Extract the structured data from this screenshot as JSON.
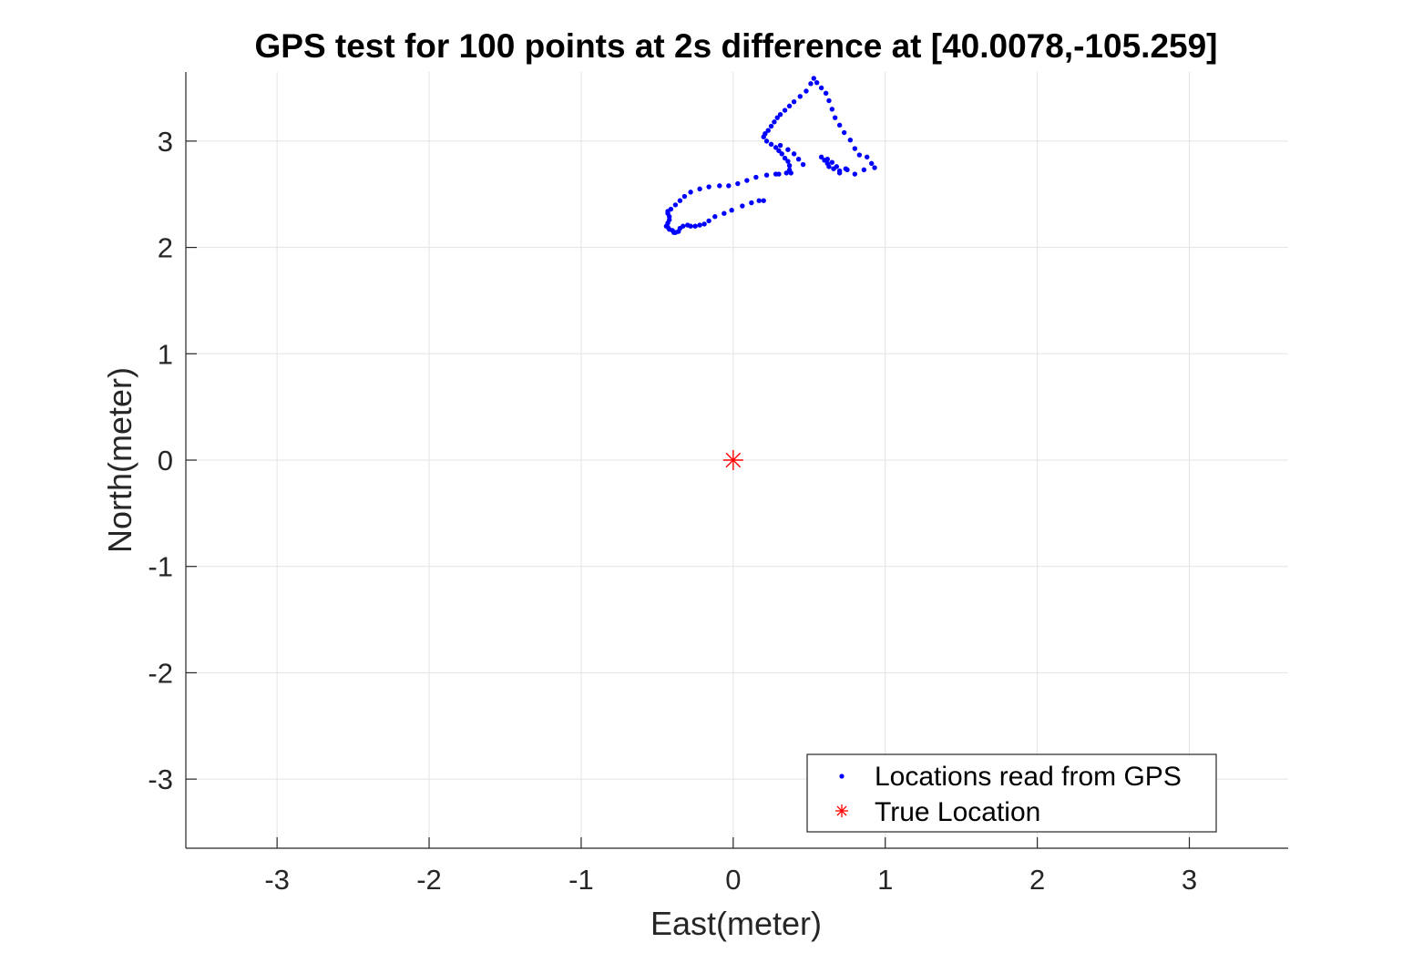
{
  "chart_data": {
    "type": "scatter",
    "title": "GPS test for 100 points at 2s difference at [40.0078,-105.259]",
    "xlabel": "East(meter)",
    "ylabel": "North(meter)",
    "xlim": [
      -3.6,
      3.65
    ],
    "ylim": [
      -3.65,
      3.65
    ],
    "xticks": [
      -3,
      -2,
      -1,
      0,
      1,
      2,
      3
    ],
    "yticks": [
      -3,
      -2,
      -1,
      0,
      1,
      2,
      3
    ],
    "xtick_labels": [
      "-3",
      "-2",
      "-1",
      "0",
      "1",
      "2",
      "3"
    ],
    "ytick_labels": [
      "-3",
      "-2",
      "-1",
      "0",
      "1",
      "2",
      "3"
    ],
    "grid": true,
    "legend_position": "bottom-right",
    "series": [
      {
        "name": "Locations read from GPS",
        "marker": "dot",
        "color": "#0000ff",
        "points": [
          [
            0.2,
            2.44
          ],
          [
            0.17,
            2.44
          ],
          [
            0.12,
            2.42
          ],
          [
            0.06,
            2.39
          ],
          [
            -0.01,
            2.35
          ],
          [
            -0.06,
            2.32
          ],
          [
            -0.12,
            2.29
          ],
          [
            -0.16,
            2.25
          ],
          [
            -0.19,
            2.22
          ],
          [
            -0.22,
            2.21
          ],
          [
            -0.25,
            2.2
          ],
          [
            -0.28,
            2.2
          ],
          [
            -0.3,
            2.21
          ],
          [
            -0.33,
            2.2
          ],
          [
            -0.35,
            2.18
          ],
          [
            -0.36,
            2.15
          ],
          [
            -0.38,
            2.14
          ],
          [
            -0.39,
            2.14
          ],
          [
            -0.4,
            2.16
          ],
          [
            -0.42,
            2.17
          ],
          [
            -0.43,
            2.19
          ],
          [
            -0.44,
            2.2
          ],
          [
            -0.43,
            2.23
          ],
          [
            -0.42,
            2.26
          ],
          [
            -0.42,
            2.29
          ],
          [
            -0.43,
            2.32
          ],
          [
            -0.43,
            2.34
          ],
          [
            -0.41,
            2.36
          ],
          [
            -0.38,
            2.4
          ],
          [
            -0.35,
            2.44
          ],
          [
            -0.32,
            2.48
          ],
          [
            -0.28,
            2.52
          ],
          [
            -0.22,
            2.55
          ],
          [
            -0.16,
            2.57
          ],
          [
            -0.09,
            2.58
          ],
          [
            -0.03,
            2.58
          ],
          [
            0.03,
            2.6
          ],
          [
            0.09,
            2.63
          ],
          [
            0.15,
            2.66
          ],
          [
            0.22,
            2.68
          ],
          [
            0.28,
            2.69
          ],
          [
            0.35,
            2.7
          ],
          [
            0.38,
            2.7
          ],
          [
            0.37,
            2.73
          ],
          [
            0.37,
            2.77
          ],
          [
            0.36,
            2.81
          ],
          [
            0.34,
            2.84
          ],
          [
            0.32,
            2.88
          ],
          [
            0.3,
            2.91
          ],
          [
            0.28,
            2.94
          ],
          [
            0.25,
            2.97
          ],
          [
            0.22,
            3.0
          ],
          [
            0.2,
            3.04
          ],
          [
            0.21,
            3.07
          ],
          [
            0.23,
            3.1
          ],
          [
            0.25,
            3.14
          ],
          [
            0.27,
            3.18
          ],
          [
            0.29,
            3.22
          ],
          [
            0.31,
            3.25
          ],
          [
            0.34,
            3.29
          ],
          [
            0.37,
            3.33
          ],
          [
            0.4,
            3.37
          ],
          [
            0.44,
            3.42
          ],
          [
            0.48,
            3.47
          ],
          [
            0.51,
            3.54
          ],
          [
            0.53,
            3.59
          ],
          [
            0.55,
            3.55
          ],
          [
            0.58,
            3.5
          ],
          [
            0.61,
            3.45
          ],
          [
            0.63,
            3.38
          ],
          [
            0.65,
            3.3
          ],
          [
            0.67,
            3.22
          ],
          [
            0.7,
            3.15
          ],
          [
            0.73,
            3.08
          ],
          [
            0.77,
            3.01
          ],
          [
            0.8,
            2.93
          ],
          [
            0.83,
            2.87
          ],
          [
            0.88,
            2.85
          ],
          [
            0.91,
            2.79
          ],
          [
            0.93,
            2.75
          ],
          [
            0.86,
            2.73
          ],
          [
            0.75,
            2.73
          ],
          [
            0.7,
            2.72
          ],
          [
            0.66,
            2.74
          ],
          [
            0.63,
            2.76
          ],
          [
            0.62,
            2.79
          ],
          [
            0.6,
            2.82
          ],
          [
            0.58,
            2.85
          ],
          [
            0.62,
            2.83
          ],
          [
            0.65,
            2.8
          ],
          [
            0.68,
            2.76
          ],
          [
            0.7,
            2.7
          ],
          [
            0.74,
            2.74
          ],
          [
            0.8,
            2.69
          ],
          [
            0.46,
            2.78
          ],
          [
            0.43,
            2.83
          ],
          [
            0.4,
            2.88
          ],
          [
            0.36,
            2.92
          ],
          [
            0.31,
            2.96
          ],
          [
            0.3,
            2.69
          ]
        ]
      },
      {
        "name": "True Location",
        "marker": "asterisk",
        "color": "#ff0000",
        "points": [
          [
            0,
            0
          ]
        ]
      }
    ]
  }
}
